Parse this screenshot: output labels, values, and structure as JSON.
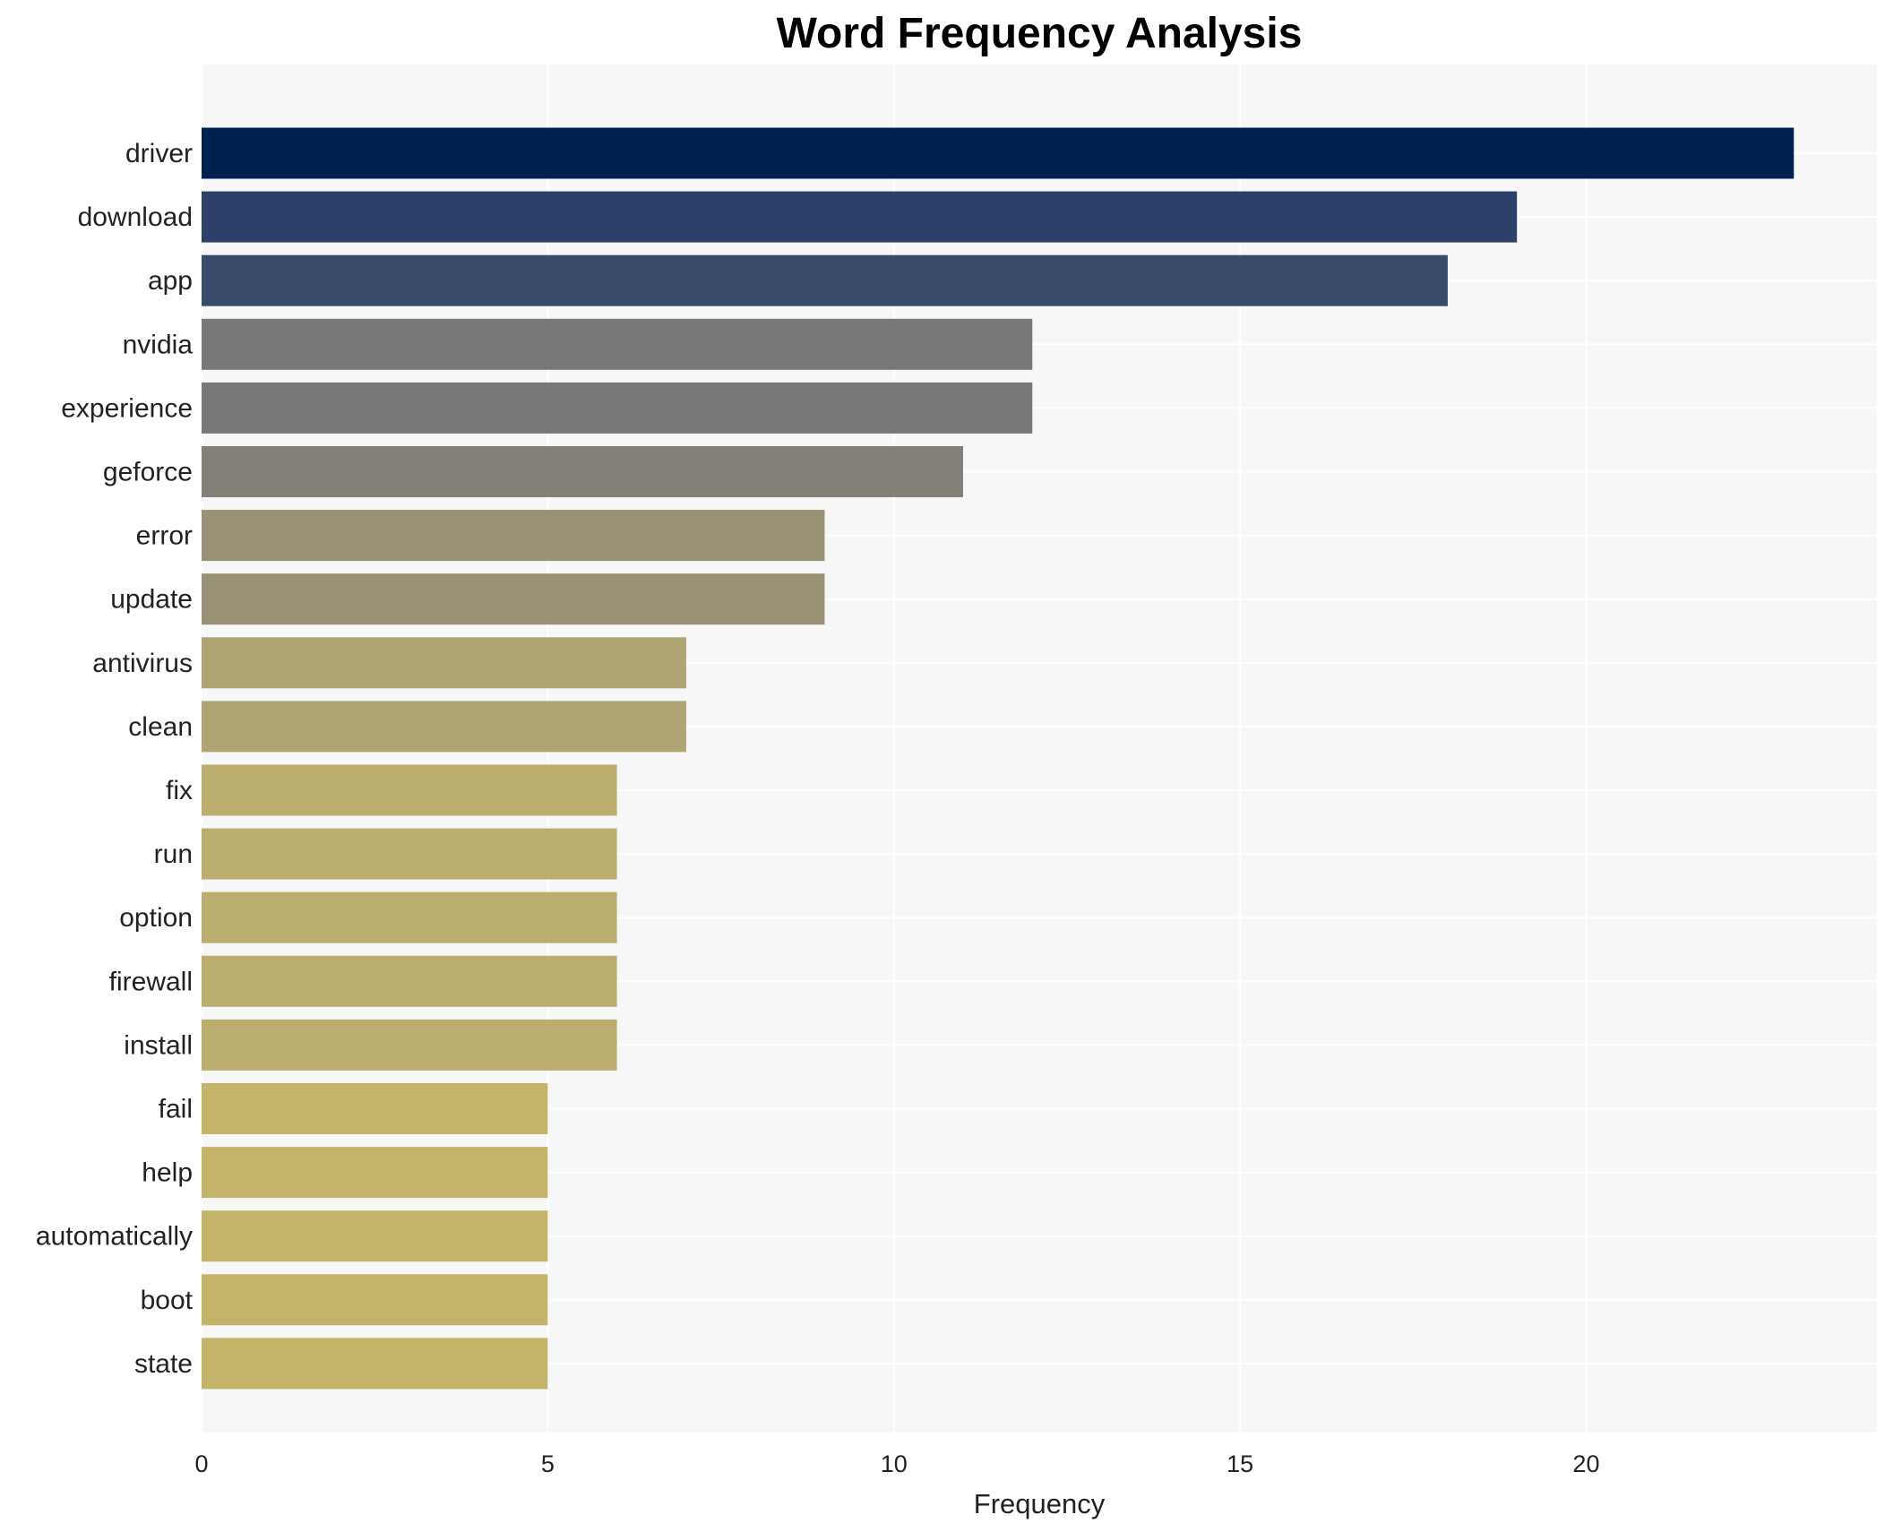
{
  "chart_data": {
    "type": "bar",
    "orientation": "horizontal",
    "title": "Word Frequency Analysis",
    "xlabel": "Frequency",
    "ylabel": "",
    "xlim": [
      0,
      24.2
    ],
    "xticks": [
      0,
      5,
      10,
      15,
      20
    ],
    "grid": true,
    "categories": [
      "driver",
      "download",
      "app",
      "nvidia",
      "experience",
      "geforce",
      "error",
      "update",
      "antivirus",
      "clean",
      "fix",
      "run",
      "option",
      "firewall",
      "install",
      "fail",
      "help",
      "automatically",
      "boot",
      "state"
    ],
    "values": [
      23,
      19,
      18,
      12,
      12,
      11,
      9,
      9,
      7,
      7,
      6,
      6,
      6,
      6,
      6,
      5,
      5,
      5,
      5,
      5
    ],
    "colors": [
      "#002251",
      "#2d4069",
      "#3a4a6b",
      "#787878",
      "#787878",
      "#838078",
      "#999175",
      "#999175",
      "#afa573",
      "#afa573",
      "#bbad6e",
      "#bbad6e",
      "#bbad6e",
      "#bbad6e",
      "#bbad6e",
      "#c4b469",
      "#c4b469",
      "#c4b469",
      "#c4b469",
      "#c4b469"
    ],
    "background": "#f7f7f7"
  }
}
